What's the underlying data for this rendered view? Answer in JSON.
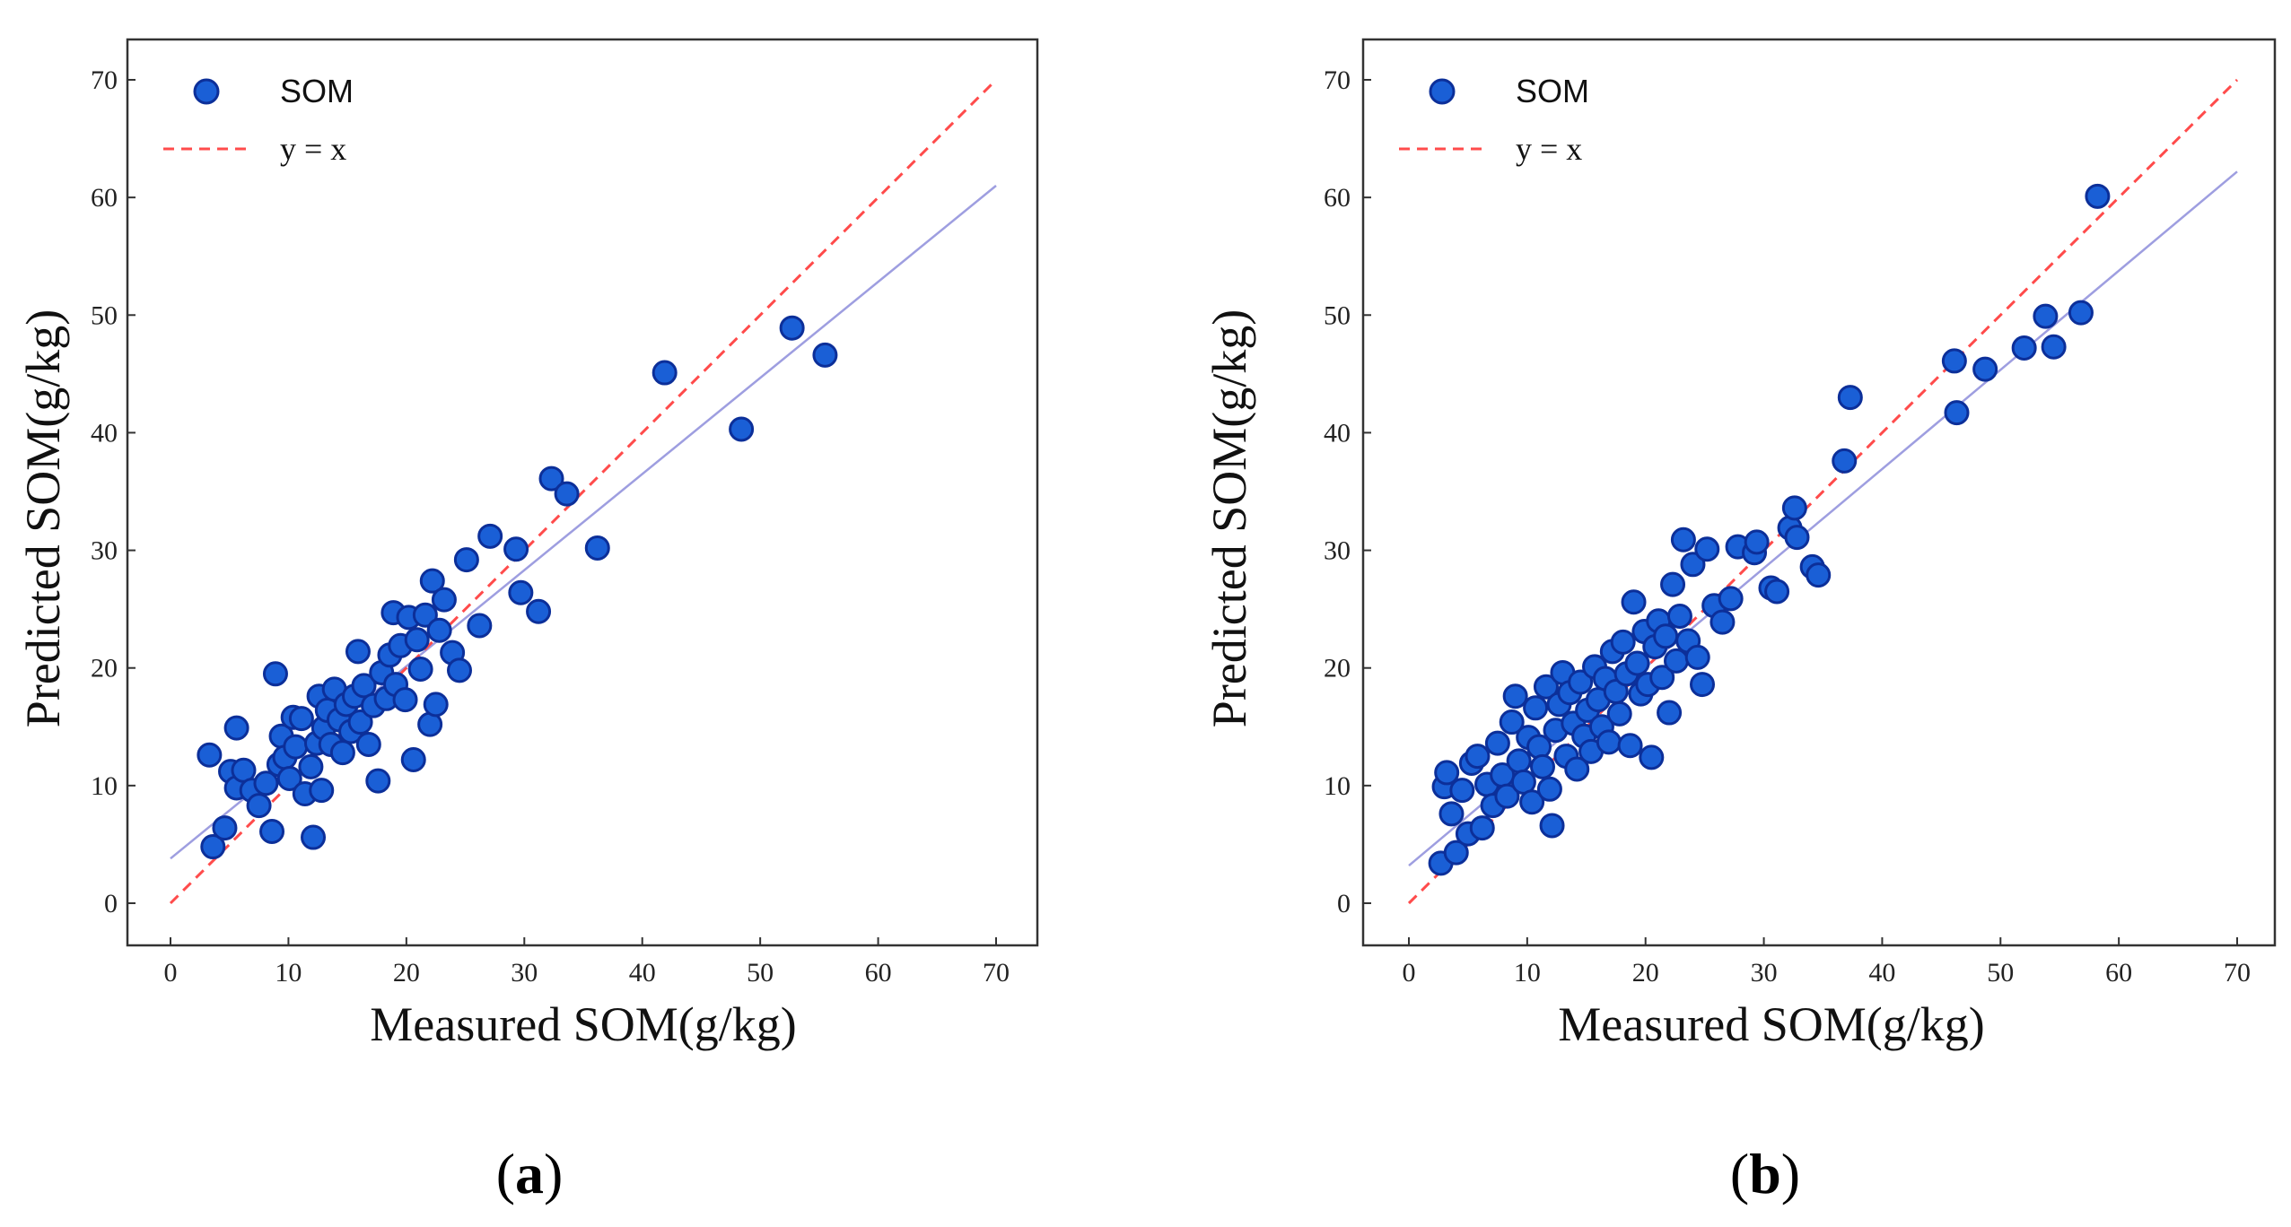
{
  "chart_data": [
    {
      "type": "scatter",
      "panel_label": "a",
      "xlabel": "Measured SOM(g/kg)",
      "ylabel": "Predicted SOM(g/kg)",
      "xlim": [
        0,
        70
      ],
      "ylim": [
        0,
        70
      ],
      "xticks": [
        "0",
        "10",
        "20",
        "30",
        "40",
        "50",
        "60",
        "70"
      ],
      "yticks": [
        "0",
        "10",
        "20",
        "30",
        "40",
        "50",
        "60",
        "70"
      ],
      "legend": {
        "position": "top-left",
        "entries": [
          "SOM",
          "y = x"
        ]
      },
      "grid": false,
      "identity_line": {
        "name": "y = x",
        "color": "#ff4b4b",
        "style": "dashed"
      },
      "fit_line": {
        "x": [
          0,
          70
        ],
        "y": [
          3.8,
          61
        ],
        "color": "#9e9ee0"
      },
      "series": [
        {
          "name": "SOM",
          "color": "#1a5fd6",
          "edge_color": "#0c2f99",
          "points": [
            [
              3.3,
              12.6
            ],
            [
              3.6,
              4.8
            ],
            [
              4.6,
              6.4
            ],
            [
              5.1,
              11.2
            ],
            [
              5.6,
              9.8
            ],
            [
              5.6,
              14.9
            ],
            [
              6.2,
              11.3
            ],
            [
              6.9,
              9.6
            ],
            [
              7.5,
              8.3
            ],
            [
              8.1,
              10.2
            ],
            [
              8.6,
              6.1
            ],
            [
              8.9,
              19.5
            ],
            [
              9.2,
              11.8
            ],
            [
              9.4,
              14.2
            ],
            [
              9.7,
              12.4
            ],
            [
              10.1,
              10.6
            ],
            [
              10.4,
              15.8
            ],
            [
              10.6,
              13.3
            ],
            [
              11.1,
              15.7
            ],
            [
              11.4,
              9.3
            ],
            [
              11.9,
              11.6
            ],
            [
              12.1,
              5.6
            ],
            [
              12.4,
              13.6
            ],
            [
              12.6,
              17.6
            ],
            [
              12.8,
              9.6
            ],
            [
              13.0,
              14.9
            ],
            [
              13.3,
              16.4
            ],
            [
              13.6,
              13.5
            ],
            [
              13.9,
              18.2
            ],
            [
              14.3,
              15.6
            ],
            [
              14.6,
              12.8
            ],
            [
              14.9,
              16.9
            ],
            [
              15.3,
              14.6
            ],
            [
              15.6,
              17.6
            ],
            [
              15.9,
              21.4
            ],
            [
              16.1,
              15.4
            ],
            [
              16.4,
              18.5
            ],
            [
              16.8,
              13.5
            ],
            [
              17.2,
              16.8
            ],
            [
              17.6,
              10.4
            ],
            [
              17.9,
              19.6
            ],
            [
              18.3,
              17.4
            ],
            [
              18.6,
              21.1
            ],
            [
              18.9,
              24.7
            ],
            [
              19.1,
              18.6
            ],
            [
              19.5,
              21.9
            ],
            [
              19.9,
              17.3
            ],
            [
              20.2,
              24.3
            ],
            [
              20.6,
              12.2
            ],
            [
              20.9,
              22.4
            ],
            [
              21.2,
              19.9
            ],
            [
              21.6,
              24.5
            ],
            [
              22.0,
              15.2
            ],
            [
              22.2,
              27.4
            ],
            [
              22.5,
              16.9
            ],
            [
              22.8,
              23.2
            ],
            [
              23.2,
              25.8
            ],
            [
              23.9,
              21.3
            ],
            [
              24.5,
              19.8
            ],
            [
              25.1,
              29.2
            ],
            [
              26.2,
              23.6
            ],
            [
              27.1,
              31.2
            ],
            [
              29.3,
              30.1
            ],
            [
              29.7,
              26.4
            ],
            [
              31.2,
              24.8
            ],
            [
              32.3,
              36.1
            ],
            [
              33.6,
              34.8
            ],
            [
              36.2,
              30.2
            ],
            [
              41.9,
              45.1
            ],
            [
              48.4,
              40.3
            ],
            [
              52.7,
              48.9
            ],
            [
              55.5,
              46.6
            ]
          ]
        }
      ]
    },
    {
      "type": "scatter",
      "panel_label": "b",
      "xlabel": "Measured SOM(g/kg)",
      "ylabel": "Predicted SOM(g/kg)",
      "xlim": [
        0,
        70
      ],
      "ylim": [
        0,
        70
      ],
      "xticks": [
        "0",
        "10",
        "20",
        "30",
        "40",
        "50",
        "60",
        "70"
      ],
      "yticks": [
        "0",
        "10",
        "20",
        "30",
        "40",
        "50",
        "60",
        "70"
      ],
      "legend": {
        "position": "top-left",
        "entries": [
          "SOM",
          "y = x"
        ]
      },
      "grid": false,
      "identity_line": {
        "name": "y = x",
        "color": "#ff4b4b",
        "style": "dashed"
      },
      "fit_line": {
        "x": [
          0,
          70
        ],
        "y": [
          3.2,
          62.2
        ],
        "color": "#9e9ee0"
      },
      "series": [
        {
          "name": "SOM",
          "color": "#1a5fd6",
          "edge_color": "#0c2f99",
          "points": [
            [
              2.7,
              3.4
            ],
            [
              3.0,
              9.9
            ],
            [
              3.2,
              11.1
            ],
            [
              3.6,
              7.6
            ],
            [
              4.0,
              4.3
            ],
            [
              4.5,
              9.6
            ],
            [
              5.0,
              5.9
            ],
            [
              5.3,
              11.9
            ],
            [
              5.8,
              12.5
            ],
            [
              6.2,
              6.4
            ],
            [
              6.6,
              10.1
            ],
            [
              7.1,
              8.3
            ],
            [
              7.5,
              13.6
            ],
            [
              7.9,
              10.9
            ],
            [
              8.3,
              9.1
            ],
            [
              8.7,
              15.4
            ],
            [
              9.0,
              17.6
            ],
            [
              9.3,
              12.1
            ],
            [
              9.7,
              10.3
            ],
            [
              10.1,
              14.1
            ],
            [
              10.4,
              8.6
            ],
            [
              10.7,
              16.6
            ],
            [
              11.0,
              13.3
            ],
            [
              11.3,
              11.6
            ],
            [
              11.6,
              18.4
            ],
            [
              11.9,
              9.7
            ],
            [
              12.1,
              6.6
            ],
            [
              12.4,
              14.7
            ],
            [
              12.7,
              16.9
            ],
            [
              13.0,
              19.6
            ],
            [
              13.3,
              12.5
            ],
            [
              13.6,
              17.9
            ],
            [
              13.9,
              15.3
            ],
            [
              14.2,
              11.4
            ],
            [
              14.5,
              18.8
            ],
            [
              14.8,
              14.2
            ],
            [
              15.1,
              16.4
            ],
            [
              15.4,
              12.9
            ],
            [
              15.7,
              20.1
            ],
            [
              16.0,
              17.3
            ],
            [
              16.3,
              15.0
            ],
            [
              16.6,
              19.1
            ],
            [
              16.9,
              13.7
            ],
            [
              17.2,
              21.4
            ],
            [
              17.5,
              18.0
            ],
            [
              17.8,
              16.1
            ],
            [
              18.1,
              22.2
            ],
            [
              18.4,
              19.5
            ],
            [
              18.7,
              13.4
            ],
            [
              19.0,
              25.6
            ],
            [
              19.3,
              20.4
            ],
            [
              19.6,
              17.8
            ],
            [
              19.9,
              23.1
            ],
            [
              20.2,
              18.6
            ],
            [
              20.5,
              12.4
            ],
            [
              20.8,
              21.8
            ],
            [
              21.1,
              24.0
            ],
            [
              21.4,
              19.2
            ],
            [
              21.7,
              22.7
            ],
            [
              22.0,
              16.2
            ],
            [
              22.3,
              27.1
            ],
            [
              22.6,
              20.6
            ],
            [
              22.9,
              24.4
            ],
            [
              23.2,
              30.9
            ],
            [
              23.6,
              22.3
            ],
            [
              24.0,
              28.8
            ],
            [
              24.4,
              20.9
            ],
            [
              24.8,
              18.6
            ],
            [
              25.2,
              30.1
            ],
            [
              25.8,
              25.3
            ],
            [
              26.5,
              23.9
            ],
            [
              27.2,
              25.9
            ],
            [
              27.8,
              30.3
            ],
            [
              29.2,
              29.8
            ],
            [
              29.4,
              30.7
            ],
            [
              30.6,
              26.8
            ],
            [
              31.1,
              26.5
            ],
            [
              32.2,
              31.9
            ],
            [
              32.6,
              33.6
            ],
            [
              32.8,
              31.1
            ],
            [
              34.1,
              28.6
            ],
            [
              34.6,
              27.9
            ],
            [
              36.8,
              37.6
            ],
            [
              37.3,
              43.0
            ],
            [
              46.1,
              46.1
            ],
            [
              46.3,
              41.7
            ],
            [
              48.7,
              45.4
            ],
            [
              52.0,
              47.2
            ],
            [
              53.8,
              49.9
            ],
            [
              54.5,
              47.3
            ],
            [
              56.8,
              50.2
            ],
            [
              58.2,
              60.1
            ]
          ]
        }
      ]
    }
  ]
}
